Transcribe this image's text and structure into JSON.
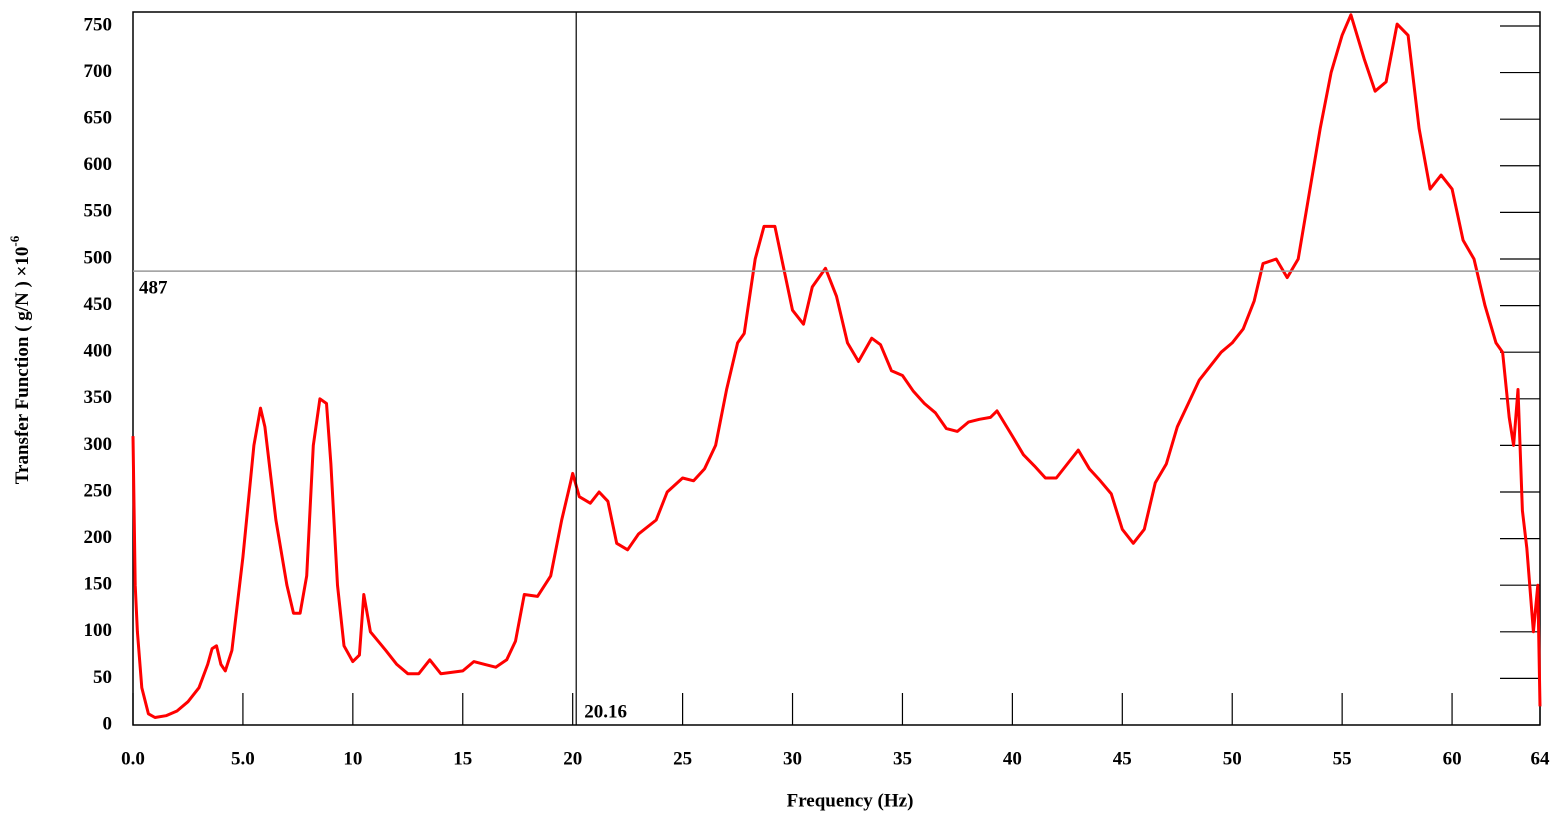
{
  "chart_data": {
    "type": "line",
    "xlabel": "Frequency (Hz)",
    "ylabel": "Transfer Function ( g/N ) ×10",
    "ylabel_power": "-6",
    "color": "#ff0000",
    "xlim": [
      0,
      64
    ],
    "ylim": [
      0,
      765
    ],
    "xticks": [
      {
        "value": 0,
        "label": "0.0"
      },
      {
        "value": 5,
        "label": "5.0"
      },
      10,
      15,
      20,
      25,
      30,
      35,
      40,
      45,
      50,
      55,
      60,
      64
    ],
    "yticks": [
      0,
      50,
      100,
      150,
      200,
      250,
      300,
      350,
      400,
      450,
      500,
      550,
      600,
      650,
      700,
      750
    ],
    "cursor": {
      "x": 20.16,
      "y": 487
    },
    "x": [
      0,
      0.1,
      0.2,
      0.4,
      0.7,
      1.0,
      1.5,
      2.0,
      2.5,
      3.0,
      3.4,
      3.6,
      3.8,
      4.0,
      4.2,
      4.5,
      5.0,
      5.5,
      5.8,
      6.0,
      6.5,
      7.0,
      7.3,
      7.6,
      7.9,
      8.2,
      8.5,
      8.8,
      9.0,
      9.3,
      9.6,
      10.0,
      10.3,
      10.5,
      10.8,
      11.5,
      12.0,
      12.5,
      13.0,
      13.5,
      14.0,
      15.0,
      15.5,
      16.0,
      16.5,
      17.0,
      17.4,
      17.8,
      18.4,
      19.0,
      19.5,
      20.0,
      20.3,
      20.8,
      21.2,
      21.6,
      22.0,
      22.5,
      23.0,
      23.8,
      24.3,
      25.0,
      25.5,
      26.0,
      26.5,
      27.0,
      27.5,
      27.8,
      28.3,
      28.7,
      29.2,
      29.6,
      30.0,
      30.5,
      30.9,
      31.5,
      32.0,
      32.5,
      33.0,
      33.6,
      34.0,
      34.5,
      35.0,
      35.5,
      36.0,
      36.5,
      37.0,
      37.5,
      38.0,
      38.5,
      39.0,
      39.3,
      40.0,
      40.5,
      41.0,
      41.5,
      42.0,
      42.5,
      43.0,
      43.5,
      44.0,
      44.5,
      45.0,
      45.5,
      46.0,
      46.5,
      47.0,
      47.5,
      48.0,
      48.5,
      49.0,
      49.5,
      50.0,
      50.5,
      51.0,
      51.4,
      52.0,
      52.5,
      53.0,
      53.5,
      54.0,
      54.5,
      55.0,
      55.4,
      56.0,
      56.5,
      57.0,
      57.5,
      58.0,
      58.5,
      59.0,
      59.5,
      60.0,
      60.5,
      61.0,
      61.5,
      62.0,
      62.3,
      62.6,
      62.8,
      63.0,
      63.2,
      63.4,
      63.7,
      63.9,
      64.0
    ],
    "values": [
      310,
      150,
      100,
      40,
      12,
      8,
      10,
      15,
      25,
      40,
      65,
      82,
      85,
      65,
      58,
      80,
      180,
      300,
      340,
      320,
      220,
      150,
      120,
      120,
      160,
      300,
      350,
      345,
      280,
      150,
      85,
      68,
      75,
      140,
      100,
      80,
      65,
      55,
      55,
      70,
      55,
      58,
      68,
      65,
      62,
      70,
      90,
      140,
      138,
      160,
      220,
      270,
      245,
      238,
      250,
      240,
      195,
      188,
      205,
      220,
      250,
      265,
      262,
      275,
      300,
      360,
      410,
      420,
      500,
      535,
      535,
      490,
      445,
      430,
      470,
      490,
      460,
      410,
      390,
      415,
      408,
      380,
      375,
      358,
      345,
      335,
      318,
      315,
      325,
      328,
      330,
      337,
      310,
      290,
      278,
      265,
      265,
      280,
      295,
      275,
      262,
      248,
      210,
      195,
      210,
      260,
      280,
      320,
      345,
      370,
      385,
      400,
      410,
      425,
      455,
      495,
      500,
      480,
      500,
      570,
      640,
      700,
      740,
      762,
      715,
      680,
      690,
      752,
      740,
      640,
      575,
      590,
      575,
      520,
      500,
      450,
      410,
      400,
      330,
      300,
      360,
      230,
      190,
      100,
      150,
      20
    ]
  }
}
